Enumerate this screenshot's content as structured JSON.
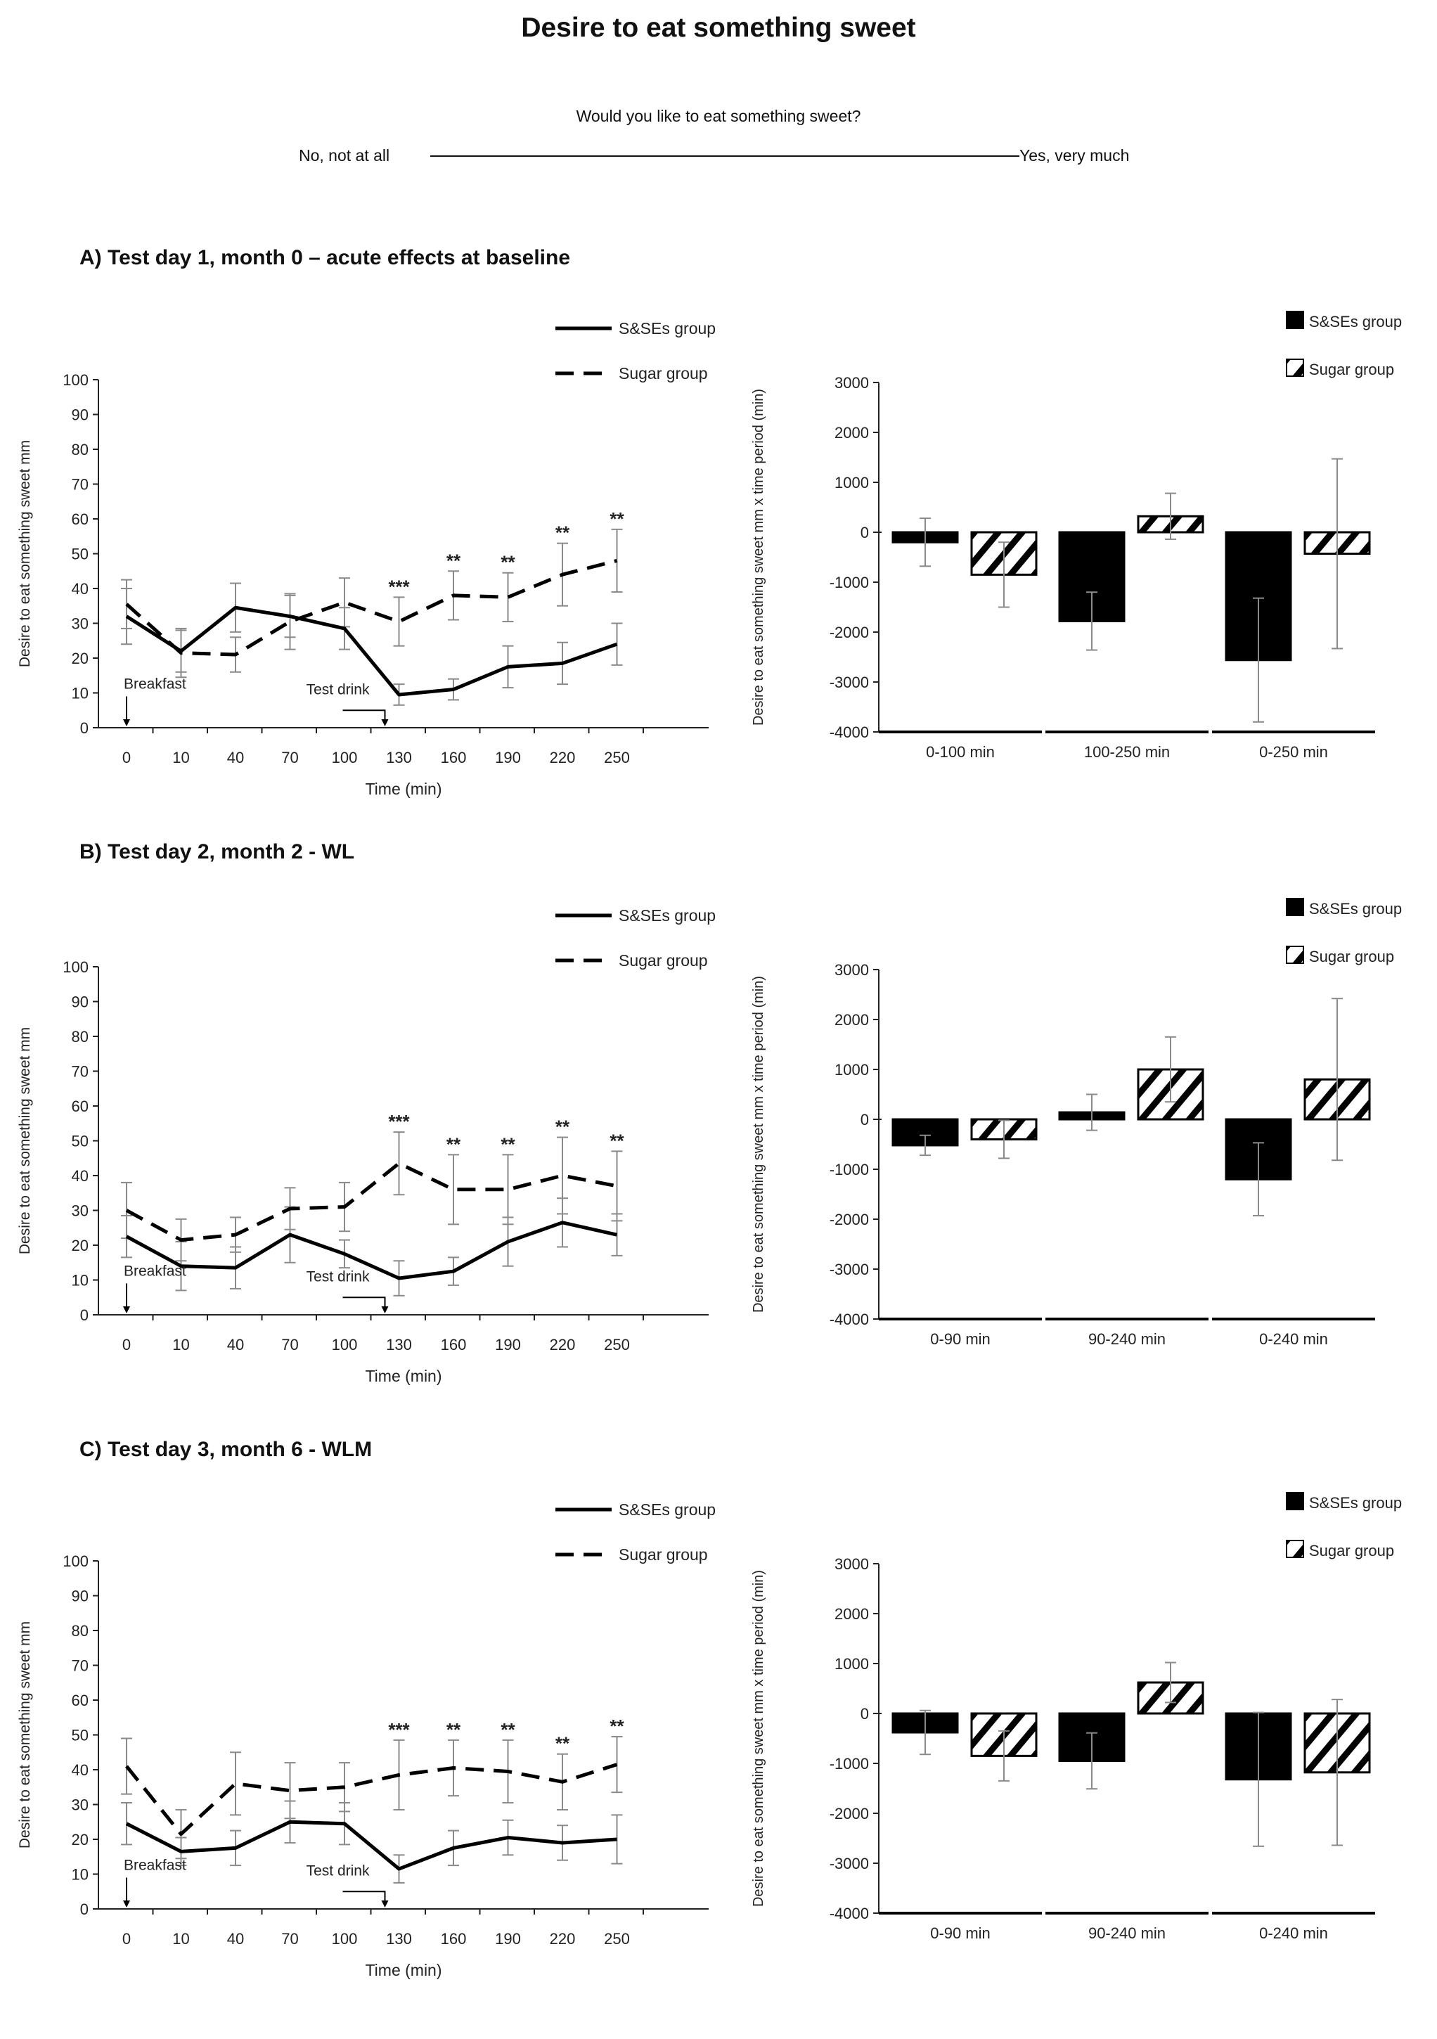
{
  "title": "Desire to eat something sweet",
  "vas": {
    "question": "Would you like to eat something sweet?",
    "left_anchor": "No, not at all",
    "right_anchor": "Yes, very much"
  },
  "colors": {
    "ink": "#000000",
    "axis": "#222222",
    "error_bar": "#8a8a8a"
  },
  "chart_data": [
    {
      "id": "A-line",
      "type": "line",
      "panel_title": "A) Test day 1, month 0 – acute effects at baseline",
      "categories": [
        "0",
        "10",
        "40",
        "70",
        "100",
        "130",
        "160",
        "190",
        "220",
        "250"
      ],
      "xlabel": "Time (min)",
      "ylabel": "Desire to eat something sweet mm",
      "ylim": [
        0,
        100
      ],
      "yticks": [
        0,
        10,
        20,
        30,
        40,
        50,
        60,
        70,
        80,
        90,
        100
      ],
      "legend": "top-right",
      "series": [
        {
          "name": "S&SEs group",
          "style": "solid",
          "values": [
            32,
            22,
            34.5,
            32,
            28.5,
            9.5,
            11,
            17.5,
            18.5,
            24
          ],
          "errors": [
            8,
            6,
            7,
            6,
            6,
            3,
            3,
            6,
            6,
            6
          ]
        },
        {
          "name": "Sugar group",
          "style": "dashed",
          "values": [
            35.5,
            21.5,
            21,
            30.5,
            36,
            30.5,
            38,
            37.5,
            44,
            48
          ],
          "errors": [
            7,
            7,
            5,
            8,
            7,
            7,
            7,
            7,
            9,
            9
          ]
        }
      ],
      "significance": [
        "",
        "",
        "",
        "",
        "",
        "***",
        "**",
        "**",
        "**",
        "**"
      ],
      "annotations": {
        "start": "Breakfast",
        "drink": "Test drink"
      }
    },
    {
      "id": "A-bar",
      "type": "bar",
      "categories": [
        "0-100 min",
        "100-250 min",
        "0-250 min"
      ],
      "ylabel": "Desire to eat something sweet mm x time period (min)",
      "ylim": [
        -4000,
        3000
      ],
      "yticks": [
        -4000,
        -3000,
        -2000,
        -1000,
        0,
        1000,
        2000,
        3000
      ],
      "legend": "top-right",
      "series": [
        {
          "name": "S&SEs group",
          "fill": "solid",
          "values": [
            -200,
            -1780,
            -2560
          ],
          "errors": [
            480,
            580,
            1240
          ]
        },
        {
          "name": "Sugar group",
          "fill": "hatched",
          "values": [
            -850,
            320,
            -430
          ],
          "errors": [
            650,
            460,
            1900
          ]
        }
      ]
    },
    {
      "id": "B-line",
      "type": "line",
      "panel_title": "B) Test day 2, month 2 - WL",
      "categories": [
        "0",
        "10",
        "40",
        "70",
        "100",
        "130",
        "160",
        "190",
        "220",
        "250"
      ],
      "xlabel": "Time (min)",
      "ylabel": "Desire to eat something sweet mm",
      "ylim": [
        0,
        100
      ],
      "yticks": [
        0,
        10,
        20,
        30,
        40,
        50,
        60,
        70,
        80,
        90,
        100
      ],
      "legend": "top-right",
      "series": [
        {
          "name": "S&SEs group",
          "style": "solid",
          "values": [
            22.5,
            14,
            13.5,
            23,
            17.5,
            10.5,
            12.5,
            21,
            26.5,
            23
          ],
          "errors": [
            6,
            7,
            6,
            8,
            4,
            5,
            4,
            7,
            7,
            6
          ]
        },
        {
          "name": "Sugar group",
          "style": "dashed",
          "values": [
            30,
            21.5,
            23,
            30.5,
            31,
            43.5,
            36,
            36,
            40,
            37
          ],
          "errors": [
            8,
            6,
            5,
            6,
            7,
            9,
            10,
            10,
            11,
            10
          ]
        }
      ],
      "significance": [
        "",
        "",
        "",
        "",
        "",
        "***",
        "**",
        "**",
        "**",
        "**"
      ],
      "annotations": {
        "start": "Breakfast",
        "drink": "Test drink"
      }
    },
    {
      "id": "B-bar",
      "type": "bar",
      "categories": [
        "0-90 min",
        "90-240 min",
        "0-240 min"
      ],
      "ylabel": "Desire to eat something sweet mm x time period (min)",
      "ylim": [
        -4000,
        3000
      ],
      "yticks": [
        -4000,
        -3000,
        -2000,
        -1000,
        0,
        1000,
        2000,
        3000
      ],
      "legend": "top-right",
      "series": [
        {
          "name": "S&SEs group",
          "fill": "solid",
          "values": [
            -520,
            140,
            -1200
          ],
          "errors": [
            200,
            360,
            730
          ]
        },
        {
          "name": "Sugar group",
          "fill": "hatched",
          "values": [
            -400,
            1000,
            800
          ],
          "errors": [
            380,
            650,
            1620
          ]
        }
      ]
    },
    {
      "id": "C-line",
      "type": "line",
      "panel_title": "C) Test day 3, month 6 - WLM",
      "categories": [
        "0",
        "10",
        "40",
        "70",
        "100",
        "130",
        "160",
        "190",
        "220",
        "250"
      ],
      "xlabel": "Time (min)",
      "ylabel": "Desire to eat something sweet mm",
      "ylim": [
        0,
        100
      ],
      "yticks": [
        0,
        10,
        20,
        30,
        40,
        50,
        60,
        70,
        80,
        90,
        100
      ],
      "legend": "top-right",
      "series": [
        {
          "name": "S&SEs group",
          "style": "solid",
          "values": [
            24.5,
            16.5,
            17.5,
            25,
            24.5,
            11.5,
            17.5,
            20.5,
            19,
            20
          ],
          "errors": [
            6,
            4,
            5,
            6,
            6,
            4,
            5,
            5,
            5,
            7
          ]
        },
        {
          "name": "Sugar group",
          "style": "dashed",
          "values": [
            41,
            21.5,
            36,
            34,
            35,
            38.5,
            40.5,
            39.5,
            36.5,
            41.5
          ],
          "errors": [
            8,
            7,
            9,
            8,
            7,
            10,
            8,
            9,
            8,
            8
          ]
        }
      ],
      "significance": [
        "",
        "",
        "",
        "",
        "",
        "***",
        "**",
        "**",
        "**",
        "**"
      ],
      "annotations": {
        "start": "Breakfast",
        "drink": "Test drink"
      }
    },
    {
      "id": "C-bar",
      "type": "bar",
      "categories": [
        "0-90 min",
        "90-240 min",
        "0-240 min"
      ],
      "ylabel": "Desire to eat something sweet mm x time period (min)",
      "ylim": [
        -4000,
        3000
      ],
      "yticks": [
        -4000,
        -3000,
        -2000,
        -1000,
        0,
        1000,
        2000,
        3000
      ],
      "legend": "top-right",
      "series": [
        {
          "name": "S&SEs group",
          "fill": "solid",
          "values": [
            -380,
            -950,
            -1320
          ],
          "errors": [
            440,
            560,
            1340
          ]
        },
        {
          "name": "Sugar group",
          "fill": "hatched",
          "values": [
            -850,
            620,
            -1180
          ],
          "errors": [
            500,
            400,
            1460
          ]
        }
      ]
    }
  ]
}
